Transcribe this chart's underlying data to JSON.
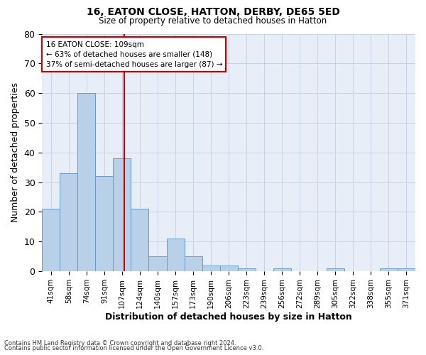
{
  "title1": "16, EATON CLOSE, HATTON, DERBY, DE65 5ED",
  "title2": "Size of property relative to detached houses in Hatton",
  "xlabel": "Distribution of detached houses by size in Hatton",
  "ylabel": "Number of detached properties",
  "categories": [
    "41sqm",
    "58sqm",
    "74sqm",
    "91sqm",
    "107sqm",
    "124sqm",
    "140sqm",
    "157sqm",
    "173sqm",
    "190sqm",
    "206sqm",
    "223sqm",
    "239sqm",
    "256sqm",
    "272sqm",
    "289sqm",
    "305sqm",
    "322sqm",
    "338sqm",
    "355sqm",
    "371sqm"
  ],
  "values": [
    21,
    33,
    60,
    32,
    38,
    21,
    5,
    11,
    5,
    2,
    2,
    1,
    0,
    1,
    0,
    0,
    1,
    0,
    0,
    1,
    1
  ],
  "bar_color": "#b8d0e8",
  "bar_edge_color": "#6699cc",
  "bar_edge_width": 0.7,
  "grid_color": "#c8d4e4",
  "background_color": "#e8eef8",
  "ylim": [
    0,
    80
  ],
  "yticks": [
    0,
    10,
    20,
    30,
    40,
    50,
    60,
    70,
    80
  ],
  "red_line_color": "#cc0000",
  "annotation_line1": "16 EATON CLOSE: 109sqm",
  "annotation_line2": "← 63% of detached houses are smaller (148)",
  "annotation_line3": "37% of semi-detached houses are larger (87) →",
  "footnote1": "Contains HM Land Registry data © Crown copyright and database right 2024.",
  "footnote2": "Contains public sector information licensed under the Open Government Licence v3.0."
}
